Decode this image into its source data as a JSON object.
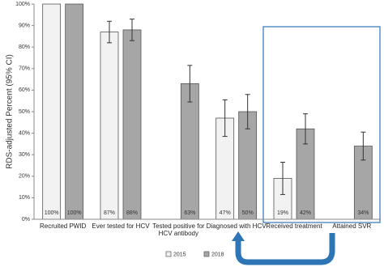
{
  "chart_data": {
    "type": "bar",
    "y_label": "RDS-adjusted Percent (95% CI)",
    "categories": [
      "Recruited PWID",
      "Ever tested for HCV",
      "Tested positive for HCV antibody",
      "Diagnosed with HCV",
      "Received treatment",
      "Attained SVR"
    ],
    "series": [
      {
        "name": "2015",
        "color": "#f2f2f2",
        "values": [
          100,
          87,
          null,
          47,
          19,
          null
        ],
        "errors": [
          null,
          5,
          null,
          8.5,
          7.5,
          null
        ],
        "value_labels": [
          "100%",
          "87%",
          null,
          "47%",
          "19%",
          null
        ]
      },
      {
        "name": "2018",
        "color": "#a6a6a6",
        "values": [
          100,
          88,
          63,
          50,
          42,
          34
        ],
        "errors": [
          null,
          5,
          8.5,
          8,
          7,
          6.5
        ],
        "value_labels": [
          "100%",
          "88%",
          "63%",
          "50%",
          "42%",
          "34%"
        ]
      }
    ],
    "ylim": [
      0,
      100
    ],
    "yticks": [
      {
        "value": 0,
        "label": "0%"
      },
      {
        "value": 10,
        "label": "10%"
      },
      {
        "value": 20,
        "label": "20%"
      },
      {
        "value": 30,
        "label": "30%"
      },
      {
        "value": 40,
        "label": "40%"
      },
      {
        "value": 50,
        "label": "50%"
      },
      {
        "value": 60,
        "label": "60%"
      },
      {
        "value": 70,
        "label": "70%"
      },
      {
        "value": 80,
        "label": "80%"
      },
      {
        "value": 90,
        "label": "90%"
      },
      {
        "value": 100,
        "label": "100%"
      }
    ],
    "grid": false,
    "legend": "bottom"
  }
}
